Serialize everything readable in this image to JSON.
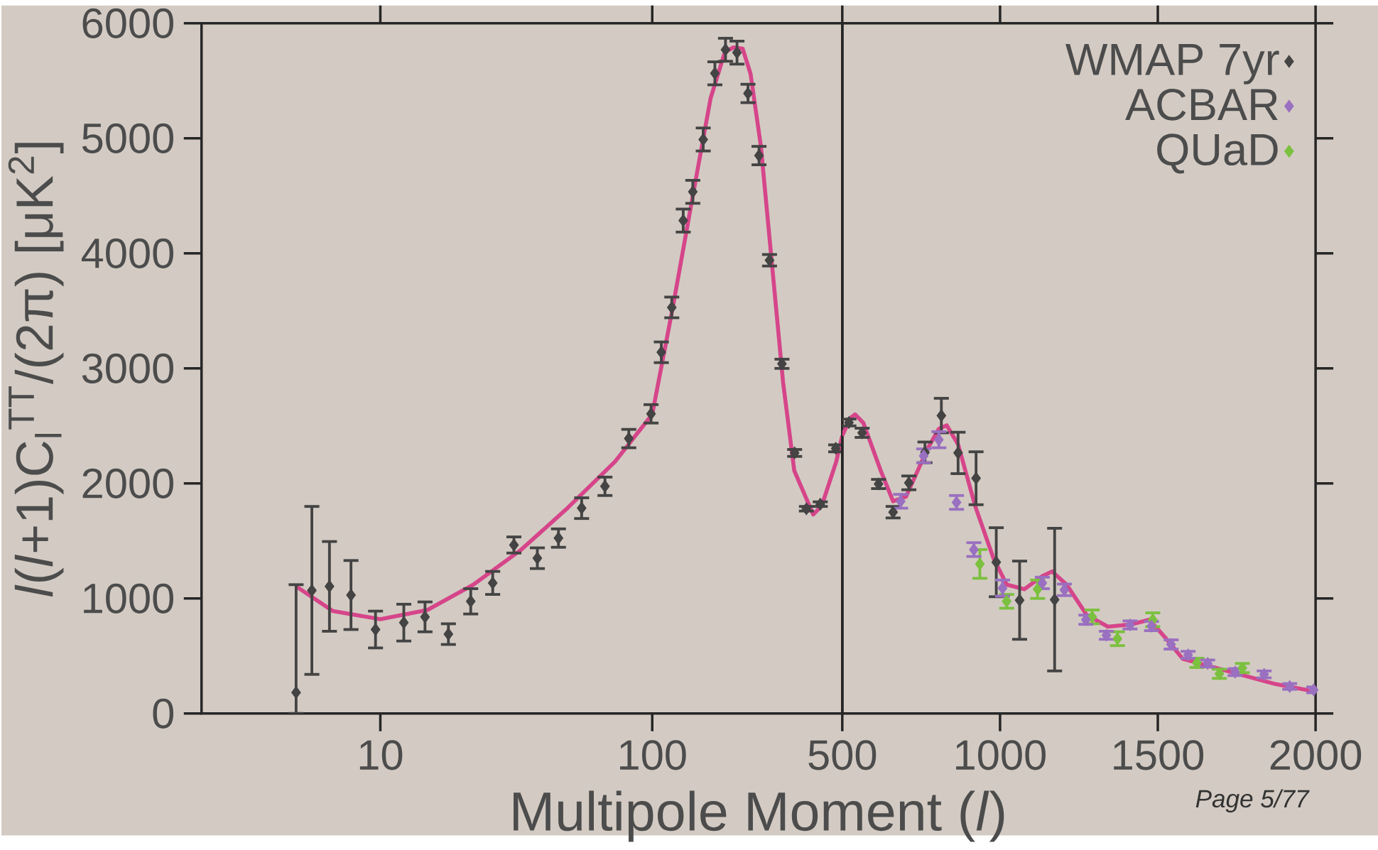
{
  "chart_data": [
    {
      "type": "scatter",
      "xlabel": "Multipole Moment (*l*)",
      "ylabel": "*l*(*l*+1)C$_{l}$$^{TT}$/(2π) [μK$^{2}$]",
      "xlim": [
        2.2,
        500
      ],
      "xticks": [
        10,
        100
      ],
      "ylim": [
        0,
        6000
      ],
      "yticks": [
        0,
        1000,
        2000,
        3000,
        4000,
        5000,
        6000
      ],
      "log": "x",
      "marker": "diamond",
      "series": [
        {
          "type": "line",
          "marker": "none",
          "color": "#d6458a",
          "x": [
            4.9,
            6.7,
            10,
            14.9,
            22,
            33,
            49,
            73,
            100,
            119,
            141,
            164,
            185,
            199,
            215,
            230,
            251,
            303,
            333,
            391,
            420,
            475,
            500
          ],
          "values": [
            1105,
            890,
            820,
            900,
            1120,
            1425,
            1790,
            2190,
            2600,
            3530,
            4500,
            5350,
            5750,
            5790,
            5780,
            5560,
            4930,
            2875,
            2110,
            1730,
            1805,
            2190,
            2415
          ]
        },
        {
          "color": "#444444",
          "x": [
            4.9,
            5.6,
            6.5,
            7.8,
            9.6,
            12.2,
            14.6,
            17.8,
            21.5,
            25.9,
            31,
            37.8,
            45.2,
            55,
            67,
            82,
            99,
            108,
            118,
            130,
            141,
            154,
            170,
            186,
            205,
            225,
            247,
            270,
            300,
            334,
            369,
            415,
            473
          ],
          "values": [
            183,
            1070,
            1105,
            1030,
            730,
            790,
            840,
            690,
            975,
            1135,
            1465,
            1350,
            1525,
            1785,
            1975,
            2390,
            2605,
            3140,
            3530,
            4285,
            4535,
            4990,
            5565,
            5770,
            5745,
            5390,
            4850,
            3940,
            3040,
            2265,
            1780,
            1820,
            2305
          ],
          "errors": [
            [
              0,
              1120
            ],
            730,
            390,
            300,
            160,
            160,
            130,
            90,
            110,
            100,
            70,
            90,
            80,
            90,
            80,
            80,
            80,
            90,
            90,
            100,
            100,
            100,
            100,
            100,
            100,
            80,
            80,
            50,
            40,
            30,
            20,
            20,
            30
          ]
        }
      ]
    },
    {
      "type": "scatter",
      "xlim": [
        500,
        2000
      ],
      "xticks": [
        500,
        1000,
        1500,
        2000
      ],
      "ylim": [
        0,
        6000
      ],
      "yticks": [
        0,
        1000,
        2000,
        3000,
        4000,
        5000,
        6000
      ],
      "tick_labels": "x",
      "legend": "top right",
      "marker": "diamond",
      "annotations": [
        "Page 5/77"
      ],
      "series": [
        {
          "type": "line",
          "marker": "none",
          "color": "#d6458a",
          "x": [
            500,
            526,
            541,
            567,
            622,
            661,
            702,
            770,
            806,
            831,
            867,
            921,
            979,
            1021,
            1077,
            1134,
            1165,
            1211,
            1275,
            1342,
            1416,
            1473,
            1522,
            1579,
            1867,
            2000
          ],
          "values": [
            2415,
            2570,
            2600,
            2525,
            2110,
            1845,
            1885,
            2300,
            2475,
            2505,
            2340,
            1805,
            1350,
            1120,
            1080,
            1195,
            1235,
            1120,
            855,
            755,
            775,
            815,
            665,
            475,
            260,
            190
          ]
        },
        {
          "name": "WMAP 7yr",
          "color": "#444444",
          "x": [
            521,
            563,
            615,
            661,
            711,
            762,
            814,
            867,
            924,
            988,
            1062,
            1173
          ],
          "values": [
            2530,
            2440,
            1995,
            1750,
            2005,
            2270,
            2590,
            2265,
            2045,
            1315,
            985,
            990
          ],
          "errors": [
            30,
            40,
            40,
            50,
            60,
            90,
            150,
            180,
            230,
            300,
            340,
            620
          ]
        },
        {
          "name": "ACBAR",
          "color": "#9a70c0",
          "x": [
            685,
            758,
            806,
            862,
            917,
            1008,
            1134,
            1204,
            1272,
            1337,
            1412,
            1480,
            1542,
            1596,
            1658,
            1745,
            1837,
            1918,
            1994
          ],
          "values": [
            1845,
            2240,
            2380,
            1835,
            1425,
            1090,
            1135,
            1075,
            815,
            680,
            770,
            760,
            600,
            510,
            435,
            360,
            340,
            235,
            205
          ],
          "errors": [
            60,
            60,
            70,
            60,
            60,
            70,
            50,
            50,
            40,
            35,
            35,
            40,
            40,
            30,
            30,
            30,
            30,
            25,
            25
          ]
        },
        {
          "name": "QUaD",
          "color": "#7cc040",
          "x": [
            936,
            1021,
            1119,
            1292,
            1372,
            1484,
            1624,
            1695,
            1768
          ],
          "values": [
            1300,
            975,
            1080,
            840,
            650,
            815,
            440,
            345,
            395
          ],
          "errors": [
            125,
            60,
            80,
            60,
            60,
            60,
            40,
            40,
            40
          ]
        }
      ]
    }
  ]
}
